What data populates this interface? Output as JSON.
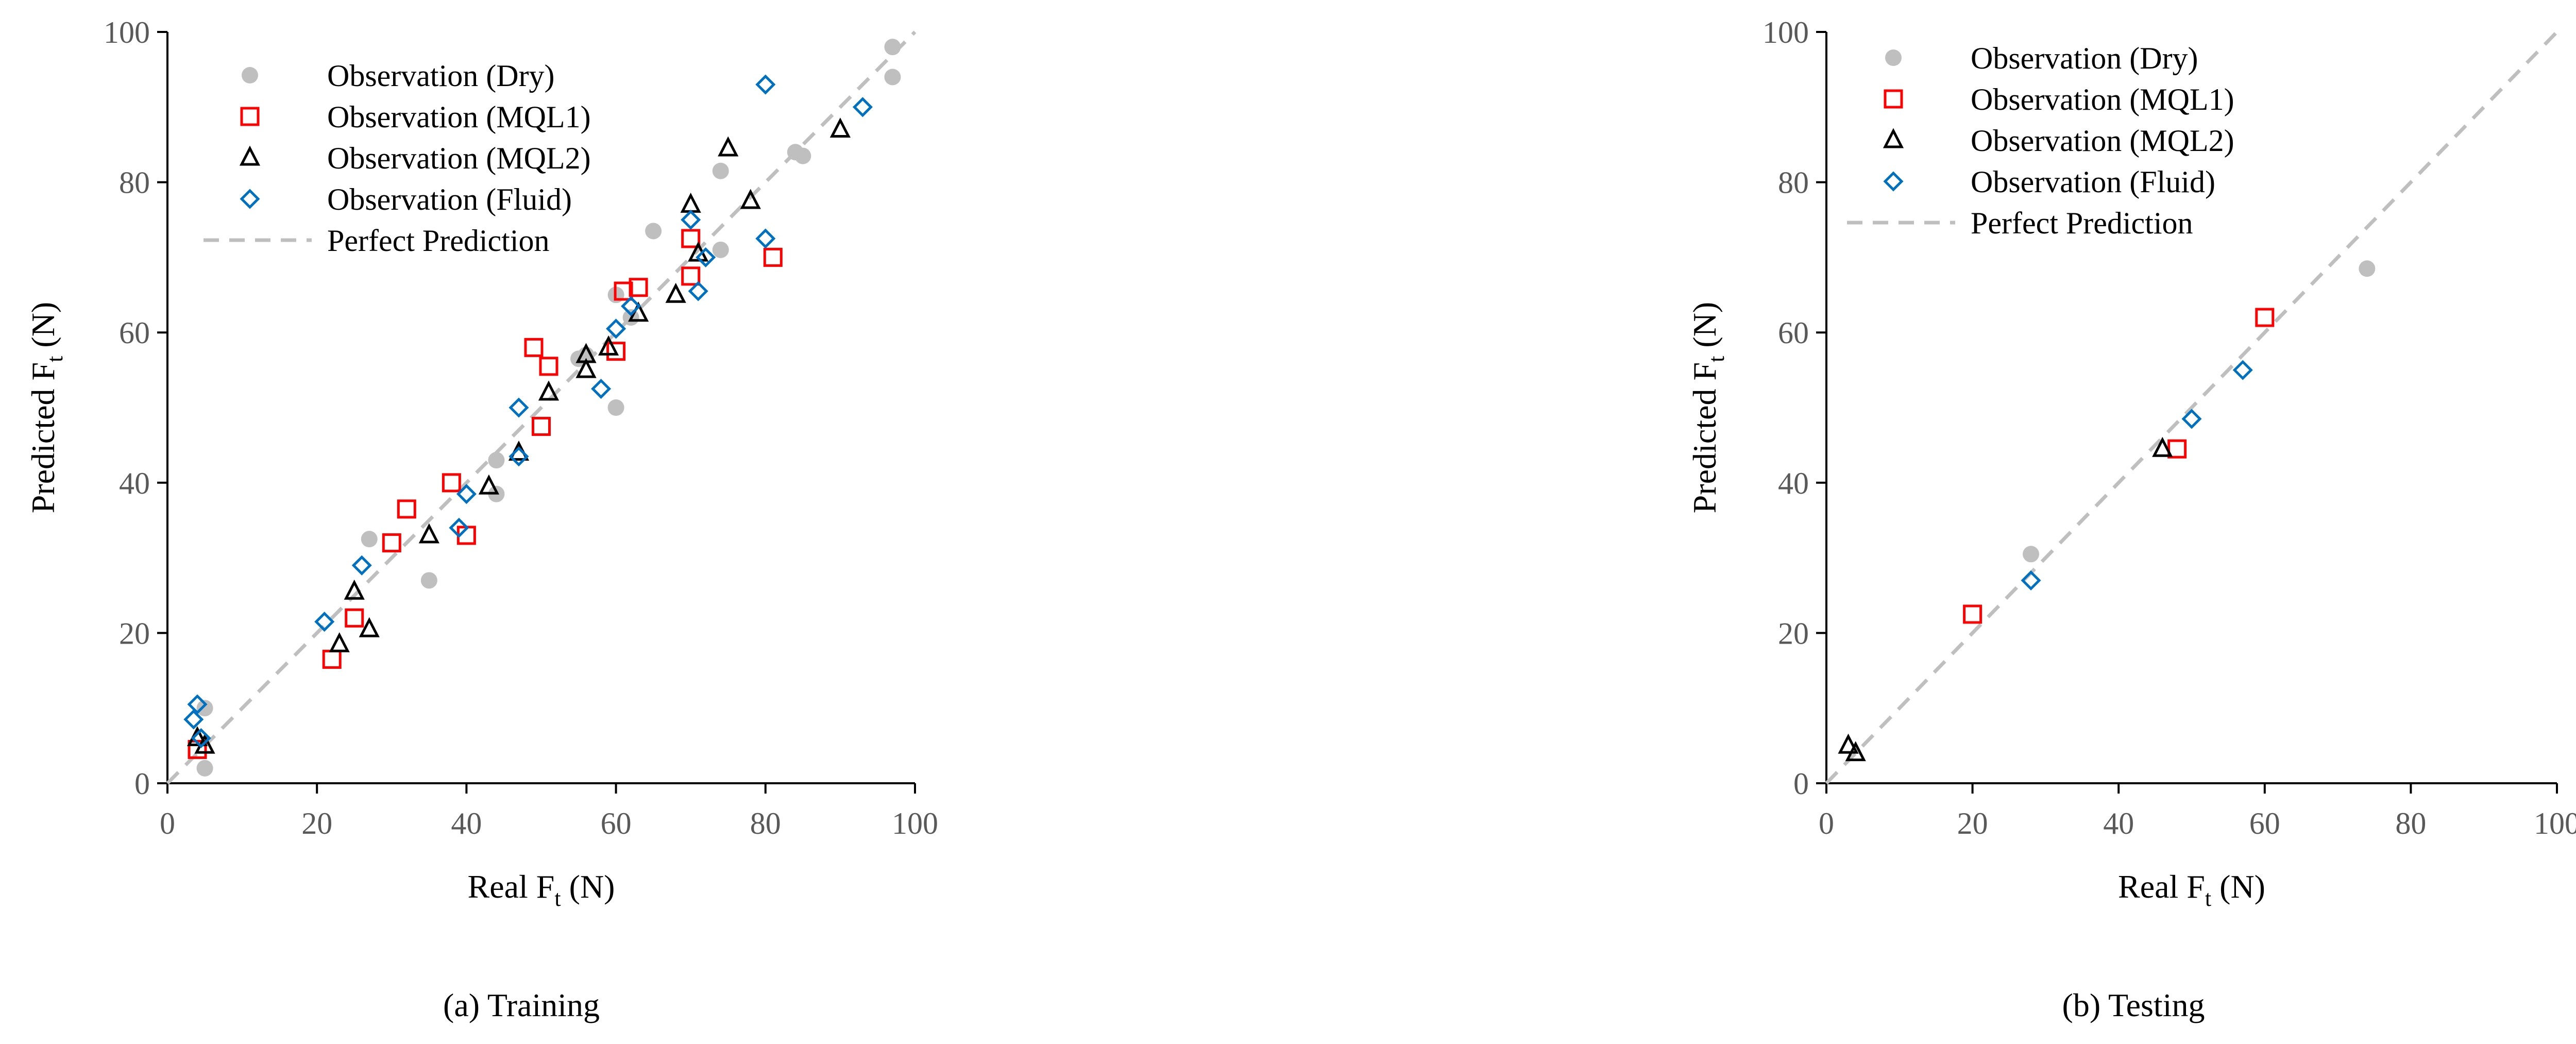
{
  "figure": {
    "captions": [
      "(a) Training",
      "(b) Testing"
    ]
  },
  "legend_labels": {
    "dry": "Observation (Dry)",
    "mql1": "Observation (MQL1)",
    "mql2": "Observation (MQL2)",
    "fluid": "Observation (Fluid)",
    "perfect": "Perfect Prediction"
  },
  "colors": {
    "dry": "#bfbfbf",
    "mql1": "#ff0000",
    "mql2": "#000000",
    "fluid": "#0070c0",
    "perfect": "#bfbfbf",
    "axis": "#000000",
    "tick_text": "#595959"
  },
  "chart_data": [
    {
      "type": "scatter",
      "caption": "(a) Training",
      "xlabel": "Real F",
      "xlabel_sub": "t",
      "xlabel_unit": " (N)",
      "ylabel": "Predicted F",
      "ylabel_sub": "t",
      "ylabel_unit": " (N)",
      "xlim": [
        0,
        100
      ],
      "ylim": [
        0,
        100
      ],
      "xticks": [
        0,
        20,
        40,
        60,
        80,
        100
      ],
      "yticks": [
        0,
        20,
        40,
        60,
        80,
        100
      ],
      "grid": false,
      "legend_position": "top-left",
      "series": [
        {
          "name": "Observation (Dry)",
          "marker": "circle",
          "points": [
            [
              5,
              10
            ],
            [
              5,
              2
            ],
            [
              27,
              32.5
            ],
            [
              35,
              27
            ],
            [
              44,
              43
            ],
            [
              44,
              38.5
            ],
            [
              55,
              56.5
            ],
            [
              56,
              57
            ],
            [
              60,
              65
            ],
            [
              60,
              50
            ],
            [
              62,
              62
            ],
            [
              65,
              73.5
            ],
            [
              74,
              81.5
            ],
            [
              74,
              71
            ],
            [
              84,
              84
            ],
            [
              85,
              83.5
            ],
            [
              97,
              98
            ],
            [
              97,
              94
            ]
          ]
        },
        {
          "name": "Observation (MQL1)",
          "marker": "square",
          "points": [
            [
              4,
              4.5
            ],
            [
              22,
              16.5
            ],
            [
              25,
              22
            ],
            [
              30,
              32
            ],
            [
              32,
              36.5
            ],
            [
              38,
              40
            ],
            [
              40,
              33
            ],
            [
              49,
              58
            ],
            [
              50,
              47.5
            ],
            [
              51,
              55.5
            ],
            [
              60,
              57.5
            ],
            [
              61,
              65.5
            ],
            [
              63,
              66
            ],
            [
              70,
              72.5
            ],
            [
              70,
              67.5
            ],
            [
              81,
              70
            ]
          ]
        },
        {
          "name": "Observation (MQL2)",
          "marker": "triangle",
          "points": [
            [
              4,
              6
            ],
            [
              5,
              5
            ],
            [
              23,
              18.5
            ],
            [
              25,
              25.5
            ],
            [
              27,
              20.5
            ],
            [
              35,
              33
            ],
            [
              43,
              39.5
            ],
            [
              47,
              44
            ],
            [
              51,
              52
            ],
            [
              56,
              57
            ],
            [
              56,
              55
            ],
            [
              59,
              58
            ],
            [
              63,
              62.5
            ],
            [
              68,
              65
            ],
            [
              70,
              77
            ],
            [
              71,
              70.5
            ],
            [
              75,
              84.5
            ],
            [
              78,
              77.5
            ],
            [
              90,
              87
            ]
          ]
        },
        {
          "name": "Observation (Fluid)",
          "marker": "diamond",
          "points": [
            [
              3.5,
              8.5
            ],
            [
              4,
              10.5
            ],
            [
              4.5,
              6
            ],
            [
              21,
              21.5
            ],
            [
              26,
              29
            ],
            [
              39,
              34
            ],
            [
              40,
              38.5
            ],
            [
              47,
              50
            ],
            [
              47,
              43.5
            ],
            [
              58,
              52.5
            ],
            [
              60,
              60.5
            ],
            [
              62,
              63.5
            ],
            [
              70,
              75
            ],
            [
              71,
              65.5
            ],
            [
              72,
              70
            ],
            [
              80,
              93
            ],
            [
              80,
              72.5
            ],
            [
              93,
              90
            ]
          ]
        },
        {
          "name": "Perfect Prediction",
          "marker": "dashed-line",
          "points": [
            [
              0,
              0
            ],
            [
              100,
              100
            ]
          ]
        }
      ]
    },
    {
      "type": "scatter",
      "caption": "(b) Testing",
      "xlabel": "Real F",
      "xlabel_sub": "t",
      "xlabel_unit": " (N)",
      "ylabel": "Predicted F",
      "ylabel_sub": "t",
      "ylabel_unit": " (N)",
      "xlim": [
        0,
        100
      ],
      "ylim": [
        0,
        100
      ],
      "xticks": [
        0,
        20,
        40,
        60,
        80,
        100
      ],
      "yticks": [
        0,
        20,
        40,
        60,
        80,
        100
      ],
      "grid": false,
      "legend_position": "top-left",
      "series": [
        {
          "name": "Observation (Dry)",
          "marker": "circle",
          "points": [
            [
              28,
              30.5
            ],
            [
              74,
              68.5
            ]
          ]
        },
        {
          "name": "Observation (MQL1)",
          "marker": "square",
          "points": [
            [
              20,
              22.5
            ],
            [
              48,
              44.5
            ],
            [
              60,
              62
            ]
          ]
        },
        {
          "name": "Observation (MQL2)",
          "marker": "triangle",
          "points": [
            [
              3,
              5
            ],
            [
              4,
              4
            ],
            [
              46,
              44.5
            ]
          ]
        },
        {
          "name": "Observation (Fluid)",
          "marker": "diamond",
          "points": [
            [
              28,
              27
            ],
            [
              50,
              48.5
            ],
            [
              57,
              55
            ]
          ]
        },
        {
          "name": "Perfect Prediction",
          "marker": "dashed-line",
          "points": [
            [
              0,
              0
            ],
            [
              100,
              100
            ]
          ]
        }
      ]
    }
  ]
}
